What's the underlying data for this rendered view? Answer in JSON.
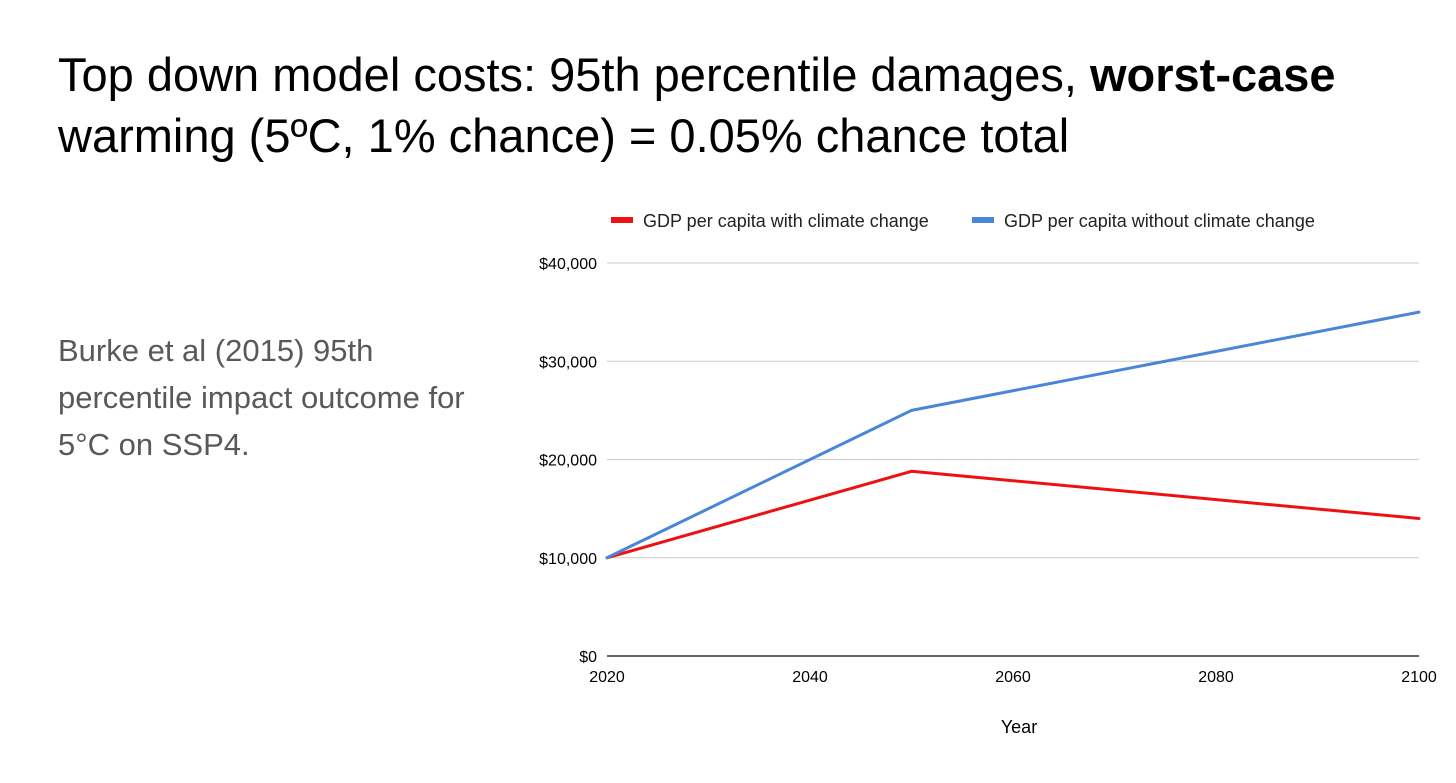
{
  "slide": {
    "title_part1": "Top down model costs: 95th percentile damages, ",
    "title_bold": "worst-case",
    "title_part2": " warming (5ºC, 1% chance) = 0.05% chance total",
    "body_text": "Burke et al (2015) 95th percentile impact outcome for 5°C on SSP4."
  },
  "chart_data": {
    "type": "line",
    "title": "",
    "xlabel": "Year",
    "ylabel": "",
    "xlim": [
      2020,
      2100
    ],
    "ylim": [
      0,
      40000
    ],
    "xticks": [
      2020,
      2040,
      2060,
      2080,
      2100
    ],
    "xtick_labels": [
      "2020",
      "2040",
      "2060",
      "2080",
      "2100"
    ],
    "yticks": [
      0,
      10000,
      20000,
      30000,
      40000
    ],
    "ytick_labels": [
      "$0",
      "$10,000",
      "$20,000",
      "$30,000",
      "$40,000"
    ],
    "grid": true,
    "legend_position": "top",
    "x": [
      2020,
      2050,
      2100
    ],
    "series": [
      {
        "name": "GDP per capita with climate change",
        "color": "#ee1111",
        "values": [
          10000,
          18800,
          14000
        ]
      },
      {
        "name": "GDP per capita without climate change",
        "color": "#4a86d8",
        "values": [
          10000,
          25000,
          35000
        ]
      }
    ]
  }
}
